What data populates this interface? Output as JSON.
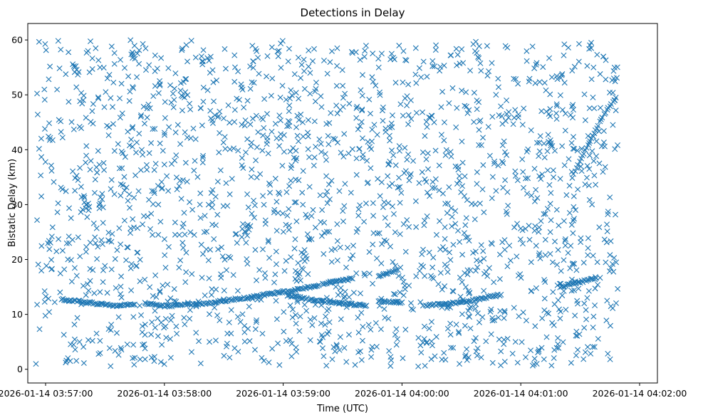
{
  "chart_data": {
    "type": "scatter",
    "title": "Detections in Delay",
    "xlabel": "Time (UTC)",
    "ylabel": "Bistatic Delay (km)",
    "marker": "x",
    "color": "#1f77b4",
    "grid": false,
    "legend": "none",
    "xlim": [
      "2026-01-14 03:56:51",
      "2026-01-14 04:02:09"
    ],
    "ylim": [
      -2.5,
      63
    ],
    "xticks": [
      "2026-01-14 03:57:00",
      "2026-01-14 03:58:00",
      "2026-01-14 03:59:00",
      "2026-01-14 04:00:00",
      "2026-01-14 04:01:00",
      "2026-01-14 04:02:00"
    ],
    "yticks": [
      0,
      10,
      20,
      30,
      40,
      50,
      60
    ],
    "tracks": [
      {
        "points": [
          [
            "2026-01-14 03:57:08",
            12.8
          ],
          [
            "2026-01-14 03:57:20",
            12.2
          ],
          [
            "2026-01-14 03:57:35",
            11.6
          ],
          [
            "2026-01-14 03:57:45",
            11.8
          ]
        ]
      },
      {
        "points": [
          [
            "2026-01-14 03:57:50",
            12.0
          ],
          [
            "2026-01-14 03:58:00",
            11.5
          ],
          [
            "2026-01-14 03:58:20",
            12.0
          ],
          [
            "2026-01-14 03:58:45",
            13.2
          ],
          [
            "2026-01-14 03:59:05",
            14.4
          ],
          [
            "2026-01-14 03:59:18",
            15.3
          ]
        ]
      },
      {
        "points": [
          [
            "2026-01-14 03:59:02",
            13.5
          ],
          [
            "2026-01-14 03:59:15",
            12.6
          ],
          [
            "2026-01-14 03:59:30",
            12.0
          ],
          [
            "2026-01-14 03:59:42",
            11.6
          ]
        ]
      },
      {
        "points": [
          [
            "2026-01-14 03:59:20",
            15.5
          ],
          [
            "2026-01-14 03:59:35",
            16.5
          ]
        ]
      },
      {
        "points": [
          [
            "2026-01-14 03:59:48",
            17.0
          ],
          [
            "2026-01-14 03:59:58",
            18.1
          ]
        ]
      },
      {
        "points": [
          [
            "2026-01-14 03:59:48",
            12.4
          ],
          [
            "2026-01-14 04:00:00",
            12.2
          ]
        ]
      },
      {
        "points": [
          [
            "2026-01-14 04:00:12",
            11.6
          ],
          [
            "2026-01-14 04:00:30",
            12.2
          ],
          [
            "2026-01-14 04:00:50",
            13.6
          ]
        ]
      },
      {
        "points": [
          [
            "2026-01-14 04:01:20",
            15.0
          ],
          [
            "2026-01-14 04:01:38",
            16.6
          ]
        ]
      },
      {
        "points": [
          [
            "2026-01-14 04:01:26",
            35.0
          ],
          [
            "2026-01-14 04:01:34",
            41.0
          ],
          [
            "2026-01-14 04:01:42",
            46.5
          ],
          [
            "2026-01-14 04:01:48",
            49.5
          ]
        ]
      }
    ],
    "clutter": {
      "x_range": [
        "2026-01-14 03:56:55",
        "2026-01-14 04:01:49"
      ],
      "y_range": [
        0.5,
        60
      ],
      "approx_count": 1900
    }
  }
}
